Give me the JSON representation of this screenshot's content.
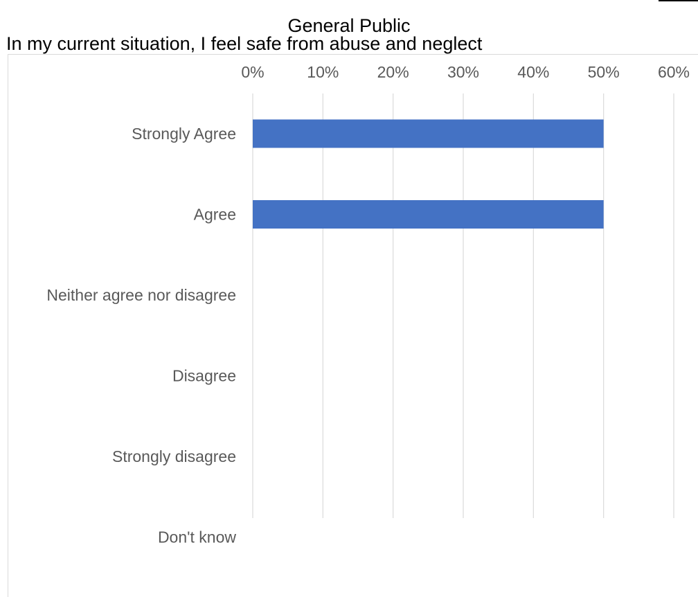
{
  "chart_data": {
    "type": "bar",
    "orientation": "horizontal",
    "title": "General Public",
    "subtitle": "In my current situation, I feel safe from abuse and neglect",
    "categories": [
      "Strongly Agree",
      "Agree",
      "Neither agree nor disagree",
      "Disagree",
      "Strongly disagree",
      "Don't know"
    ],
    "values": [
      50,
      50,
      0,
      0,
      0,
      0
    ],
    "value_unit": "%",
    "xlim": [
      0,
      60
    ],
    "xticks": [
      0,
      10,
      20,
      30,
      40,
      50,
      60
    ],
    "tick_labels": [
      "0%",
      "10%",
      "20%",
      "30%",
      "40%",
      "50%",
      "60%"
    ],
    "axis_position": "top",
    "grid": true,
    "legend": "none",
    "bar_color": "#4472C4",
    "grid_color": "#d9d9d9"
  }
}
